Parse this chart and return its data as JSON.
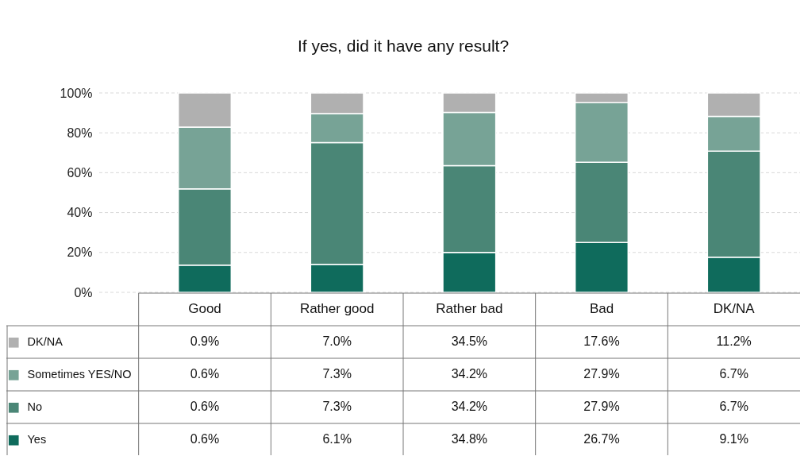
{
  "chart_data": [
    {
      "type": "bar",
      "title": "If yes, did it have any result?",
      "stacked": true,
      "grid": "y",
      "legend": "bottom left",
      "categories": [
        "Good",
        "Rather good",
        "Rather bad",
        "Bad",
        "DK/NA"
      ],
      "ylim": [
        0,
        100
      ],
      "yticks": [
        {
          "value": 0,
          "label": "0%"
        },
        {
          "value": 20,
          "label": "20%"
        },
        {
          "value": 40,
          "label": "40%"
        },
        {
          "value": 60,
          "label": "60%"
        },
        {
          "value": 80,
          "label": "80%"
        },
        {
          "value": 100,
          "label": "100%"
        }
      ],
      "series": [
        {
          "name": "Yes",
          "color": "#0f6b5c",
          "values": [
            13.6,
            14.0,
            20.0,
            25.0,
            17.6
          ]
        },
        {
          "name": "No",
          "color": "#4a8676",
          "values": [
            38.3,
            61.1,
            43.5,
            40.2,
            53.2
          ]
        },
        {
          "name": "Sometimes YES/NO",
          "color": "#77a396",
          "values": [
            31.0,
            14.5,
            26.7,
            29.9,
            17.4
          ]
        },
        {
          "name": "DK/NA",
          "color": "#b0b0b0",
          "values": [
            17.1,
            10.4,
            9.8,
            4.9,
            11.8
          ]
        }
      ]
    },
    {
      "type": "other",
      "categories": [
        null,
        null,
        null,
        null,
        null
      ],
      "annotations": [
        "0.9%",
        "7.0%",
        "34.5%",
        "17.6%",
        "11.2%",
        "0.6%",
        "7.3%",
        "34.2%",
        "27.9%",
        "6.7%",
        "0.6%",
        "7.3%",
        "34.2%",
        "27.9%",
        "6.7%",
        "0.6%",
        "6.1%",
        "34.8%",
        "26.7%",
        "9.1%"
      ]
    }
  ]
}
